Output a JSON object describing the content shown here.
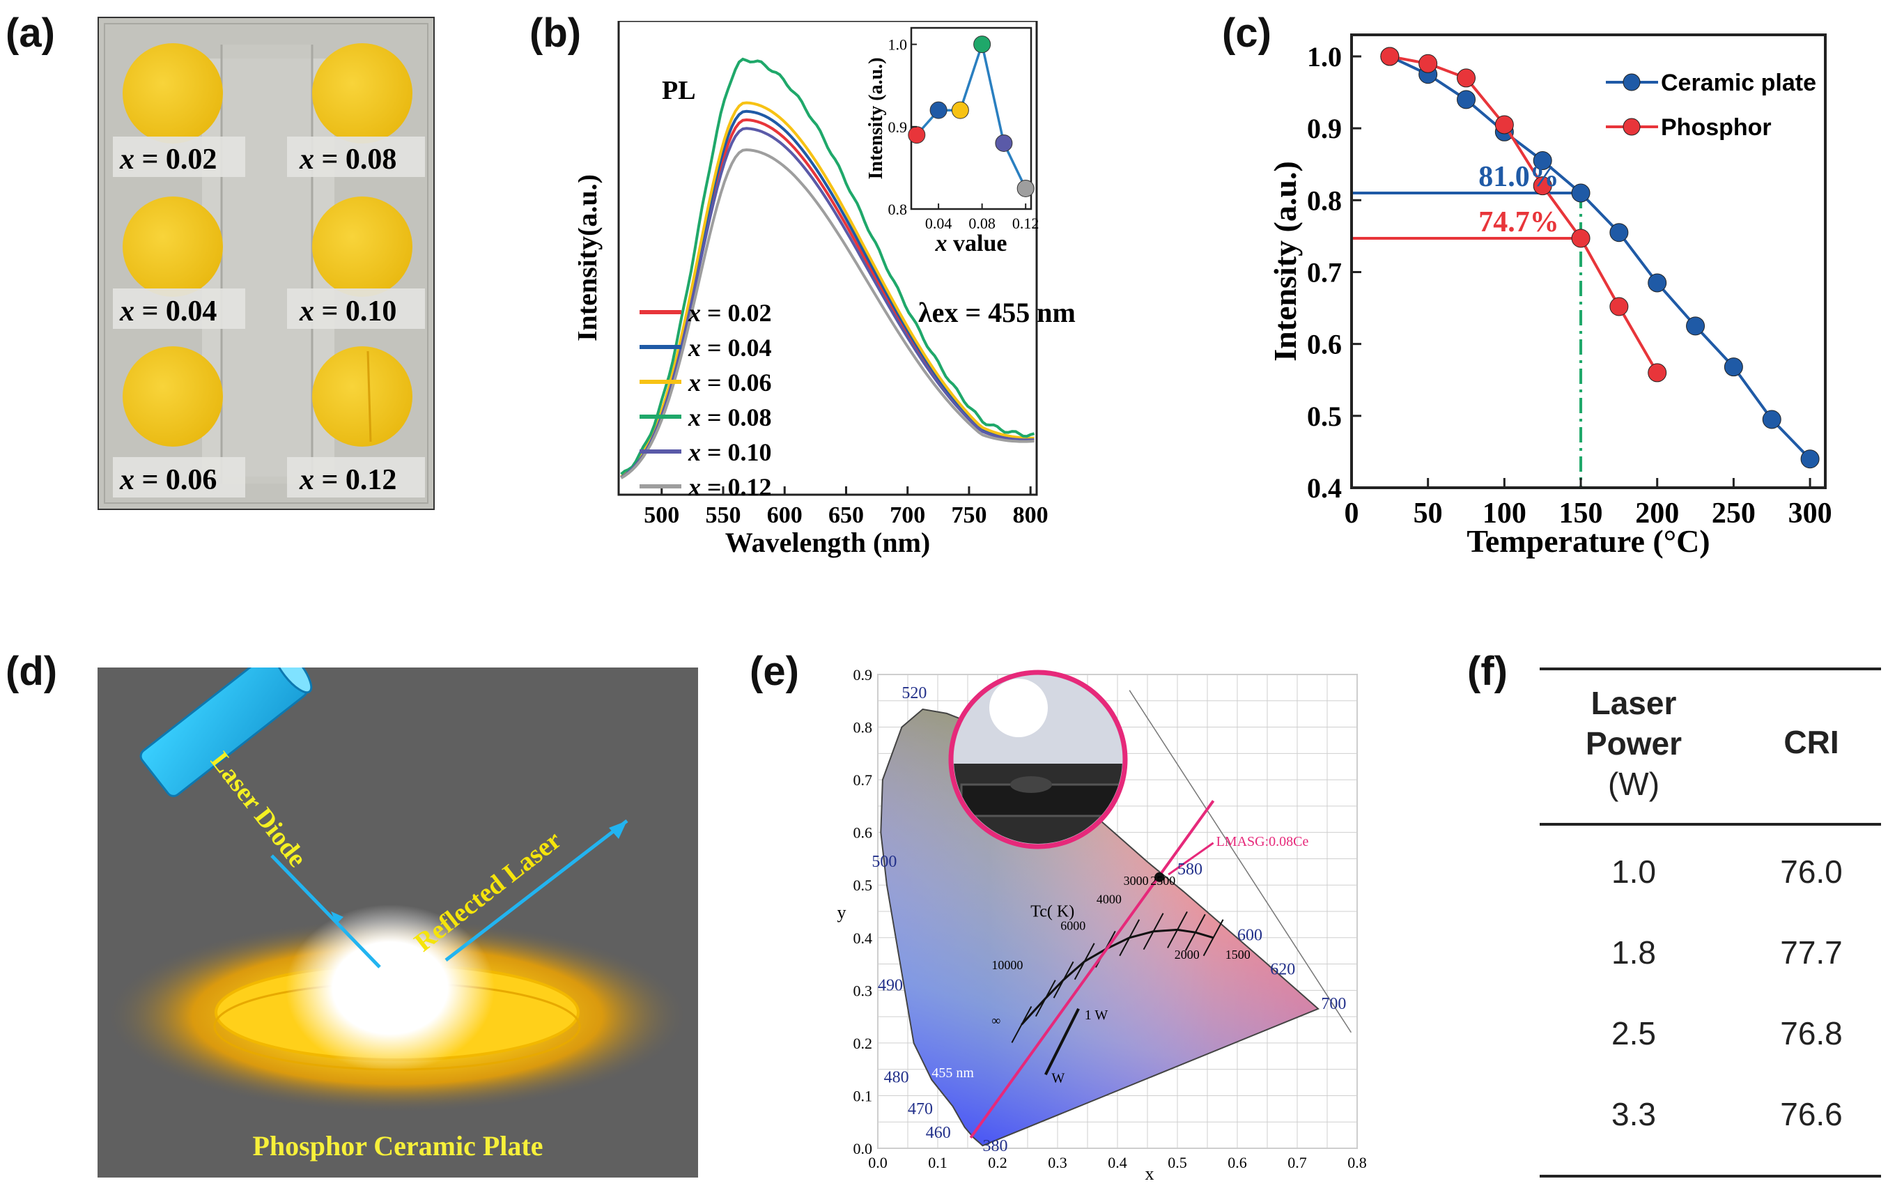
{
  "panel_labels": {
    "a": "(a)",
    "b": "(b)",
    "c": "(c)",
    "d": "(d)",
    "e": "(e)",
    "f": "(f)"
  },
  "panel_a": {
    "samples": [
      {
        "var": "x",
        "value": " = 0.02"
      },
      {
        "var": "x",
        "value": " = 0.08"
      },
      {
        "var": "x",
        "value": " = 0.04"
      },
      {
        "var": "x",
        "value": " = 0.10"
      },
      {
        "var": "x",
        "value": " = 0.06"
      },
      {
        "var": "x",
        "value": " = 0.12"
      }
    ],
    "colors": {
      "plate": "#f2c31a",
      "background": "#bdbdb6"
    }
  },
  "panel_b": {
    "pl_label": "PL",
    "excitation": "λex = 455 nm",
    "inset_xlabel_var": "x",
    "inset_xlabel_rest": " value"
  },
  "panel_d": {
    "laser_diode": "Laser Diode",
    "reflected": "Reflected Laser",
    "plate": "Phosphor  Ceramic Plate"
  },
  "panel_e": {
    "tc_label": "Tc( K)",
    "cct": [
      "10000",
      "6000",
      "4000",
      "3000",
      "2500",
      "2000",
      "1500",
      "∞"
    ],
    "wavelengths": [
      "520",
      "500",
      "490",
      "480",
      "470",
      "460",
      "380",
      "580",
      "600",
      "620",
      "700"
    ],
    "annotations": {
      "sample": "LMASG:0.08Ce",
      "ex": "455 nm",
      "w1": "1 W",
      "w3": "W"
    },
    "xlabel": "x",
    "ylabel": "y"
  },
  "table_f": {
    "headers": {
      "power_l1": "Laser",
      "power_l2": "Power",
      "power_l3": "(W)",
      "cri": "CRI"
    },
    "rows": [
      {
        "power": "1.0",
        "cri": "76.0"
      },
      {
        "power": "1.8",
        "cri": "77.7"
      },
      {
        "power": "2.5",
        "cri": "76.8"
      },
      {
        "power": "3.3",
        "cri": "76.6"
      }
    ]
  },
  "chart_data": [
    {
      "id": "b-main",
      "type": "line",
      "title": "",
      "xlabel": "Wavelength (nm)",
      "ylabel": "Intensity(a.u.)",
      "xlim": [
        465,
        805
      ],
      "xticks": [
        500,
        550,
        600,
        650,
        700,
        750,
        800
      ],
      "legend_position": "center-left",
      "series": [
        {
          "name": "x = 0.02",
          "var": "x",
          "rest": " = 0.02",
          "color": "#e8353a",
          "peak": 0.86
        },
        {
          "name": "x = 0.04",
          "var": "x",
          "rest": " = 0.04",
          "color": "#1f5aa6",
          "peak": 0.88
        },
        {
          "name": "x = 0.06",
          "var": "x",
          "rest": " = 0.06",
          "color": "#f7c214",
          "peak": 0.9
        },
        {
          "name": "x = 0.08",
          "var": "x",
          "rest": " = 0.08",
          "color": "#1fa86a",
          "peak": 1.0
        },
        {
          "name": "x = 0.10",
          "var": "x",
          "rest": " = 0.10",
          "color": "#5a5aa8",
          "peak": 0.84
        },
        {
          "name": "x = 0.12",
          "var": "x",
          "rest": " = 0.12",
          "color": "#9e9e9e",
          "peak": 0.79
        }
      ]
    },
    {
      "id": "b-inset",
      "type": "line",
      "xlabel": "x value",
      "ylabel": "Intensity (a.u.)",
      "xlim": [
        0.015,
        0.125
      ],
      "ylim": [
        0.8,
        1.02
      ],
      "xticks": [
        0.04,
        0.08,
        0.12
      ],
      "yticks": [
        0.8,
        0.9,
        1.0
      ],
      "xtick_labels": [
        "0.04",
        "0.08",
        "0.12"
      ],
      "ytick_labels": [
        "0.8",
        "0.9",
        "1.0"
      ],
      "x": [
        0.02,
        0.04,
        0.06,
        0.08,
        0.1,
        0.12
      ],
      "values": [
        0.89,
        0.92,
        0.92,
        1.0,
        0.88,
        0.825
      ],
      "point_colors": [
        "#e8353a",
        "#1f5aa6",
        "#f7c214",
        "#1fa86a",
        "#5a5aa8",
        "#9e9e9e"
      ],
      "line_color": "#2a7fc0"
    },
    {
      "id": "c",
      "type": "line",
      "xlabel": "Temperature (°C)",
      "ylabel": "Intensity (a.u.)",
      "xlim": [
        0,
        310
      ],
      "ylim": [
        0.4,
        1.03
      ],
      "xticks": [
        0,
        50,
        100,
        150,
        200,
        250,
        300
      ],
      "yticks": [
        0.4,
        0.5,
        0.6,
        0.7,
        0.8,
        0.9,
        1.0
      ],
      "xtick_labels": [
        "0",
        "50",
        "100",
        "150",
        "200",
        "250",
        "300"
      ],
      "ytick_labels": [
        "0.4",
        "0.5",
        "0.6",
        "0.7",
        "0.8",
        "0.9",
        "1.0"
      ],
      "legend_position": "top-right",
      "series": [
        {
          "name": "Ceramic plate",
          "color": "#1f5aa6",
          "x": [
            25,
            50,
            75,
            100,
            125,
            150,
            175,
            200,
            225,
            250,
            275,
            300
          ],
          "values": [
            1.0,
            0.975,
            0.94,
            0.895,
            0.855,
            0.81,
            0.755,
            0.685,
            0.625,
            0.568,
            0.495,
            0.44
          ]
        },
        {
          "name": "Phosphor",
          "color": "#e8353a",
          "x": [
            25,
            50,
            75,
            100,
            125,
            150,
            175,
            200
          ],
          "values": [
            1.0,
            0.99,
            0.97,
            0.905,
            0.82,
            0.747,
            0.652,
            0.56
          ]
        }
      ],
      "annotations": [
        {
          "text": "81.0%",
          "y": 0.81,
          "color": "#1f5aa6"
        },
        {
          "text": "74.7%",
          "y": 0.747,
          "color": "#e8353a"
        }
      ],
      "vline_x": 150
    },
    {
      "id": "e",
      "type": "scatter",
      "xlim": [
        0.0,
        0.8
      ],
      "ylim": [
        0.0,
        0.9
      ],
      "xticks": [
        0.0,
        0.1,
        0.2,
        0.3,
        0.4,
        0.5,
        0.6,
        0.7,
        0.8
      ],
      "yticks": [
        0.0,
        0.1,
        0.2,
        0.3,
        0.4,
        0.5,
        0.6,
        0.7,
        0.8,
        0.9
      ],
      "xtick_labels": [
        "0.0",
        "0.1",
        "0.2",
        "0.3",
        "0.4",
        "0.5",
        "0.6",
        "0.7",
        "0.8"
      ],
      "ytick_labels": [
        "0.0",
        "0.1",
        "0.2",
        "0.3",
        "0.4",
        "0.5",
        "0.6",
        "0.7",
        "0.8",
        "0.9"
      ],
      "points": [
        {
          "name": "LMASG:0.08Ce",
          "x": 0.47,
          "y": 0.515
        }
      ]
    }
  ]
}
